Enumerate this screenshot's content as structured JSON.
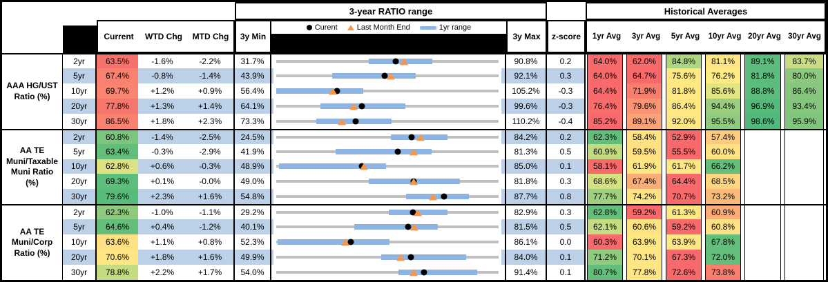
{
  "header": {
    "range_title": "3-year RATIO range",
    "hist_title": "Historical Averages",
    "legend": {
      "current": "Curent",
      "last_month": "Last Month End",
      "range": "1yr range"
    },
    "cols": {
      "current": "Current",
      "wtd": "WTD Chg",
      "mtd": "MTD Chg",
      "min": "3y Min",
      "max": "3y Max",
      "z": "z-score"
    },
    "avg_cols": [
      "1yr Avg",
      "3yr Avg",
      "5yr Avg",
      "10yr Avg",
      "20yr Avg",
      "30yr Avg"
    ]
  },
  "colors": {
    "stripe": "#BCD1E8",
    "track": "#BFBFBF",
    "bar_1yr": "#8DB4E2",
    "dot": "#000000",
    "triangle": "#F79646",
    "scale_red": "#F8696B",
    "scale_yellow": "#FFEB84",
    "scale_green": "#63BE7B"
  },
  "groups": [
    {
      "label": "AAA HG/UST\nRatio (%)",
      "rows": [
        {
          "tenor": "2yr",
          "current": "63.5%",
          "current_bg": "#F4716C",
          "wtd": "-1.6%",
          "mtd": "-2.2%",
          "min": "31.7%",
          "max": "90.8%",
          "z": "0.2",
          "min_v": 31.7,
          "max_v": 90.8,
          "cur_v": 63.5,
          "lme_v": 65.7,
          "bar": [
            56.2,
            73.2
          ],
          "avgs": [
            {
              "v": "64.0%",
              "bg": "#F8696B"
            },
            {
              "v": "62.0%",
              "bg": "#F8696B"
            },
            {
              "v": "84.8%",
              "bg": "#AFD47F"
            },
            {
              "v": "81.1%",
              "bg": "#FFE583"
            },
            {
              "v": "89.1%",
              "bg": "#5BBC7D"
            },
            {
              "v": "83.7%",
              "bg": "#C9DC84"
            }
          ]
        },
        {
          "tenor": "5yr",
          "current": "67.4%",
          "current_bg": "#F9816F",
          "wtd": "-0.8%",
          "mtd": "-1.4%",
          "min": "43.9%",
          "max": "92.1%",
          "z": "0.3",
          "min_v": 43.9,
          "max_v": 92.1,
          "cur_v": 67.4,
          "lme_v": 68.8,
          "bar": [
            56.0,
            74.2
          ],
          "avgs": [
            {
              "v": "64.0%",
              "bg": "#F8696B"
            },
            {
              "v": "64.7%",
              "bg": "#F8696B"
            },
            {
              "v": "75.6%",
              "bg": "#FFE984"
            },
            {
              "v": "76.2%",
              "bg": "#FFEB84"
            },
            {
              "v": "81.8%",
              "bg": "#5BBC7D"
            },
            {
              "v": "80.0%",
              "bg": "#8CC97E"
            }
          ]
        },
        {
          "tenor": "10yr",
          "current": "69.7%",
          "current_bg": "#F9846F",
          "wtd": "+1.2%",
          "mtd": "+0.9%",
          "min": "56.4%",
          "max": "105.2%",
          "z": "-0.3",
          "min_v": 56.4,
          "max_v": 105.2,
          "cur_v": 69.7,
          "lme_v": 68.8,
          "bar": [
            56.4,
            75.5
          ],
          "avgs": [
            {
              "v": "64.4%",
              "bg": "#F8696B"
            },
            {
              "v": "71.9%",
              "bg": "#F87E6D"
            },
            {
              "v": "81.8%",
              "bg": "#FFE884"
            },
            {
              "v": "85.6%",
              "bg": "#E3E583"
            },
            {
              "v": "88.8%",
              "bg": "#5BBC7D"
            },
            {
              "v": "86.4%",
              "bg": "#86C77D"
            }
          ]
        },
        {
          "tenor": "20yr",
          "current": "77.8%",
          "current_bg": "#F5766C",
          "wtd": "+1.3%",
          "mtd": "+1.4%",
          "min": "64.1%",
          "max": "99.6%",
          "z": "-0.3",
          "min_v": 64.1,
          "max_v": 99.6,
          "cur_v": 77.8,
          "lme_v": 76.4,
          "bar": [
            71.2,
            84.7
          ],
          "avgs": [
            {
              "v": "76.4%",
              "bg": "#F86C6B"
            },
            {
              "v": "79.6%",
              "bg": "#FA9473"
            },
            {
              "v": "86.4%",
              "bg": "#FFE884"
            },
            {
              "v": "94.4%",
              "bg": "#9BCD7F"
            },
            {
              "v": "96.9%",
              "bg": "#54BA7C"
            },
            {
              "v": "93.4%",
              "bg": "#84C67D"
            }
          ]
        },
        {
          "tenor": "30yr",
          "current": "86.5%",
          "current_bg": "#F9816E",
          "wtd": "+1.8%",
          "mtd": "+2.3%",
          "min": "73.3%",
          "max": "110.2%",
          "z": "-0.4",
          "min_v": 73.3,
          "max_v": 110.2,
          "cur_v": 86.5,
          "lme_v": 84.2,
          "bar": [
            80.0,
            92.4
          ],
          "avgs": [
            {
              "v": "85.2%",
              "bg": "#F8696B"
            },
            {
              "v": "89.1%",
              "bg": "#FBA276"
            },
            {
              "v": "92.0%",
              "bg": "#FFE884"
            },
            {
              "v": "95.5%",
              "bg": "#90CA7E"
            },
            {
              "v": "98.6%",
              "bg": "#50B87C"
            },
            {
              "v": "95.9%",
              "bg": "#7FC57D"
            }
          ]
        }
      ]
    },
    {
      "label": "AA TE\nMuni/Taxable\nMuni Ratio\n(%)",
      "rows": [
        {
          "tenor": "2yr",
          "current": "60.8%",
          "current_bg": "#7CC57D",
          "wtd": "-1.4%",
          "mtd": "-2.5%",
          "min": "24.5%",
          "max": "84.2%",
          "z": "0.2",
          "min_v": 24.5,
          "max_v": 84.2,
          "cur_v": 60.8,
          "lme_v": 63.3,
          "bar": [
            55.2,
            70.5
          ],
          "avgs": [
            {
              "v": "62.3%",
              "bg": "#63BE7B"
            },
            {
              "v": "58.4%",
              "bg": "#FFE383"
            },
            {
              "v": "52.9%",
              "bg": "#F8696B"
            },
            {
              "v": "57.4%",
              "bg": "#FDCA7E"
            },
            {
              "v": "",
              "bg": ""
            },
            {
              "v": "",
              "bg": ""
            }
          ]
        },
        {
          "tenor": "5yr",
          "current": "63.4%",
          "current_bg": "#63BE7B",
          "wtd": "-0.3%",
          "mtd": "-2.9%",
          "min": "41.9%",
          "max": "81.3%",
          "z": "0.5",
          "min_v": 41.9,
          "max_v": 81.3,
          "cur_v": 63.4,
          "lme_v": 66.3,
          "bar": [
            52.4,
            69.4
          ],
          "avgs": [
            {
              "v": "60.9%",
              "bg": "#C3DA81"
            },
            {
              "v": "59.5%",
              "bg": "#FFE083"
            },
            {
              "v": "55.5%",
              "bg": "#F8696B"
            },
            {
              "v": "60.0%",
              "bg": "#FFE383"
            },
            {
              "v": "",
              "bg": ""
            },
            {
              "v": "",
              "bg": ""
            }
          ]
        },
        {
          "tenor": "10yr",
          "current": "62.8%",
          "current_bg": "#DCE283",
          "wtd": "+0.6%",
          "mtd": "-0.3%",
          "min": "48.9%",
          "max": "85.0%",
          "z": "0.1",
          "min_v": 48.9,
          "max_v": 85.0,
          "cur_v": 62.8,
          "lme_v": 63.1,
          "bar": [
            49.3,
            66.7
          ],
          "avgs": [
            {
              "v": "58.1%",
              "bg": "#F8696B"
            },
            {
              "v": "61.9%",
              "bg": "#FFE784"
            },
            {
              "v": "61.7%",
              "bg": "#FFE884"
            },
            {
              "v": "66.2%",
              "bg": "#63BE7B"
            },
            {
              "v": "",
              "bg": ""
            },
            {
              "v": "",
              "bg": ""
            }
          ]
        },
        {
          "tenor": "20yr",
          "current": "69.3%",
          "current_bg": "#5DBD7B",
          "wtd": "+0.1%",
          "mtd": "-0.0%",
          "min": "49.0%",
          "max": "81.8%",
          "z": "0.3",
          "min_v": 49.0,
          "max_v": 81.8,
          "cur_v": 69.3,
          "lme_v": 69.3,
          "bar": [
            62.7,
            76.1
          ],
          "avgs": [
            {
              "v": "68.6%",
              "bg": "#D5E081"
            },
            {
              "v": "67.4%",
              "bg": "#FBAD77"
            },
            {
              "v": "64.4%",
              "bg": "#F8696B"
            },
            {
              "v": "68.5%",
              "bg": "#FED57F"
            },
            {
              "v": "",
              "bg": ""
            },
            {
              "v": "",
              "bg": ""
            }
          ]
        },
        {
          "tenor": "30yr",
          "current": "79.6%",
          "current_bg": "#57BB7A",
          "wtd": "+2.3%",
          "mtd": "+1.6%",
          "min": "54.8%",
          "max": "87.7%",
          "z": "0.8",
          "min_v": 54.8,
          "max_v": 87.7,
          "cur_v": 79.6,
          "lme_v": 78.0,
          "bar": [
            74.0,
            83.3
          ],
          "avgs": [
            {
              "v": "77.7%",
              "bg": "#9FCF7F"
            },
            {
              "v": "74.2%",
              "bg": "#FFE384"
            },
            {
              "v": "70.7%",
              "bg": "#F8696B"
            },
            {
              "v": "73.2%",
              "bg": "#FCBA7A"
            },
            {
              "v": "",
              "bg": ""
            },
            {
              "v": "",
              "bg": ""
            }
          ]
        }
      ]
    },
    {
      "label": "AA TE\nMuni/Corp\nRatio (%)",
      "rows": [
        {
          "tenor": "2yr",
          "current": "62.3%",
          "current_bg": "#8FCA7E",
          "wtd": "-1.0%",
          "mtd": "-1.1%",
          "min": "29.2%",
          "max": "82.9%",
          "z": "0.3",
          "min_v": 29.2,
          "max_v": 82.9,
          "cur_v": 62.3,
          "lme_v": 63.4,
          "bar": [
            56.3,
            70.6
          ],
          "avgs": [
            {
              "v": "62.8%",
              "bg": "#63BE7B"
            },
            {
              "v": "59.2%",
              "bg": "#F8696B"
            },
            {
              "v": "61.3%",
              "bg": "#FFE784"
            },
            {
              "v": "60.9%",
              "bg": "#FBAC77"
            },
            {
              "v": "",
              "bg": ""
            },
            {
              "v": "",
              "bg": ""
            }
          ]
        },
        {
          "tenor": "5yr",
          "current": "64.6%",
          "current_bg": "#63BE7B",
          "wtd": "+0.4%",
          "mtd": "-1.2%",
          "min": "40.1%",
          "max": "81.5%",
          "z": "0.5",
          "min_v": 40.1,
          "max_v": 81.5,
          "cur_v": 64.6,
          "lme_v": 65.8,
          "bar": [
            54.6,
            70.2
          ],
          "avgs": [
            {
              "v": "62.1%",
              "bg": "#C6DC81"
            },
            {
              "v": "60.6%",
              "bg": "#FFE383"
            },
            {
              "v": "59.2%",
              "bg": "#F8696B"
            },
            {
              "v": "60.8%",
              "bg": "#FFE083"
            },
            {
              "v": "",
              "bg": ""
            },
            {
              "v": "",
              "bg": ""
            }
          ]
        },
        {
          "tenor": "10yr",
          "current": "63.6%",
          "current_bg": "#FFE083",
          "wtd": "+1.1%",
          "mtd": "+0.8%",
          "min": "52.3%",
          "max": "86.1%",
          "z": "0.0",
          "min_v": 52.3,
          "max_v": 86.1,
          "cur_v": 63.6,
          "lme_v": 62.8,
          "bar": [
            52.5,
            69.5
          ],
          "avgs": [
            {
              "v": "60.3%",
              "bg": "#F8696B"
            },
            {
              "v": "63.9%",
              "bg": "#FFE884"
            },
            {
              "v": "63.9%",
              "bg": "#FFE884"
            },
            {
              "v": "67.8%",
              "bg": "#63BE7B"
            },
            {
              "v": "",
              "bg": ""
            },
            {
              "v": "",
              "bg": ""
            }
          ]
        },
        {
          "tenor": "20yr",
          "current": "70.6%",
          "current_bg": "#FFE584",
          "wtd": "+1.8%",
          "mtd": "+1.6%",
          "min": "49.9%",
          "max": "84.0%",
          "z": "0.1",
          "min_v": 49.9,
          "max_v": 84.0,
          "cur_v": 70.6,
          "lme_v": 69.0,
          "bar": [
            66.0,
            79.0
          ],
          "avgs": [
            {
              "v": "71.2%",
              "bg": "#8FCA7E"
            },
            {
              "v": "70.1%",
              "bg": "#FFE584"
            },
            {
              "v": "67.3%",
              "bg": "#F8696B"
            },
            {
              "v": "72.0%",
              "bg": "#63BE7B"
            },
            {
              "v": "",
              "bg": ""
            },
            {
              "v": "",
              "bg": ""
            }
          ]
        },
        {
          "tenor": "30yr",
          "current": "78.8%",
          "current_bg": "#C5DB81",
          "wtd": "+2.2%",
          "mtd": "+1.7%",
          "min": "54.0%",
          "max": "91.4%",
          "z": "0.1",
          "min_v": 54.0,
          "max_v": 91.4,
          "cur_v": 78.8,
          "lme_v": 77.1,
          "bar": [
            74.6,
            87.8
          ],
          "avgs": [
            {
              "v": "80.7%",
              "bg": "#63BE7B"
            },
            {
              "v": "77.8%",
              "bg": "#FFE584"
            },
            {
              "v": "72.6%",
              "bg": "#F8696B"
            },
            {
              "v": "73.8%",
              "bg": "#F97E6D"
            },
            {
              "v": "",
              "bg": ""
            },
            {
              "v": "",
              "bg": ""
            }
          ]
        }
      ]
    }
  ],
  "chart_data": {
    "type": "scatter",
    "title": "3-year RATIO range",
    "legend": [
      "Curent",
      "Last Month End",
      "1yr range"
    ],
    "note": "Per row dot-plot: gray line spans 3y Min to 3y Max, blue bar = 1yr range, black dot = Current, orange triangle = Last Month End",
    "rows": [
      {
        "group": "AAA HG/UST Ratio (%)",
        "tenor": "2yr",
        "range_3y": [
          31.7,
          90.8
        ],
        "range_1yr": [
          56.2,
          73.2
        ],
        "current": 63.5,
        "last_month_end": 65.7
      },
      {
        "group": "AAA HG/UST Ratio (%)",
        "tenor": "5yr",
        "range_3y": [
          43.9,
          92.1
        ],
        "range_1yr": [
          56.0,
          74.2
        ],
        "current": 67.4,
        "last_month_end": 68.8
      },
      {
        "group": "AAA HG/UST Ratio (%)",
        "tenor": "10yr",
        "range_3y": [
          56.4,
          105.2
        ],
        "range_1yr": [
          56.4,
          75.5
        ],
        "current": 69.7,
        "last_month_end": 68.8
      },
      {
        "group": "AAA HG/UST Ratio (%)",
        "tenor": "20yr",
        "range_3y": [
          64.1,
          99.6
        ],
        "range_1yr": [
          71.2,
          84.7
        ],
        "current": 77.8,
        "last_month_end": 76.4
      },
      {
        "group": "AAA HG/UST Ratio (%)",
        "tenor": "30yr",
        "range_3y": [
          73.3,
          110.2
        ],
        "range_1yr": [
          80.0,
          92.4
        ],
        "current": 86.5,
        "last_month_end": 84.2
      },
      {
        "group": "AA TE Muni/Taxable Muni Ratio (%)",
        "tenor": "2yr",
        "range_3y": [
          24.5,
          84.2
        ],
        "range_1yr": [
          55.2,
          70.5
        ],
        "current": 60.8,
        "last_month_end": 63.3
      },
      {
        "group": "AA TE Muni/Taxable Muni Ratio (%)",
        "tenor": "5yr",
        "range_3y": [
          41.9,
          81.3
        ],
        "range_1yr": [
          52.4,
          69.4
        ],
        "current": 63.4,
        "last_month_end": 66.3
      },
      {
        "group": "AA TE Muni/Taxable Muni Ratio (%)",
        "tenor": "10yr",
        "range_3y": [
          48.9,
          85.0
        ],
        "range_1yr": [
          49.3,
          66.7
        ],
        "current": 62.8,
        "last_month_end": 63.1
      },
      {
        "group": "AA TE Muni/Taxable Muni Ratio (%)",
        "tenor": "20yr",
        "range_3y": [
          49.0,
          81.8
        ],
        "range_1yr": [
          62.7,
          76.1
        ],
        "current": 69.3,
        "last_month_end": 69.3
      },
      {
        "group": "AA TE Muni/Taxable Muni Ratio (%)",
        "tenor": "30yr",
        "range_3y": [
          54.8,
          87.7
        ],
        "range_1yr": [
          74.0,
          83.3
        ],
        "current": 79.6,
        "last_month_end": 78.0
      },
      {
        "group": "AA TE Muni/Corp Ratio (%)",
        "tenor": "2yr",
        "range_3y": [
          29.2,
          82.9
        ],
        "range_1yr": [
          56.3,
          70.6
        ],
        "current": 62.3,
        "last_month_end": 63.4
      },
      {
        "group": "AA TE Muni/Corp Ratio (%)",
        "tenor": "5yr",
        "range_3y": [
          40.1,
          81.5
        ],
        "range_1yr": [
          54.6,
          70.2
        ],
        "current": 64.6,
        "last_month_end": 65.8
      },
      {
        "group": "AA TE Muni/Corp Ratio (%)",
        "tenor": "10yr",
        "range_3y": [
          52.3,
          86.1
        ],
        "range_1yr": [
          52.5,
          69.5
        ],
        "current": 63.6,
        "last_month_end": 62.8
      },
      {
        "group": "AA TE Muni/Corp Ratio (%)",
        "tenor": "20yr",
        "range_3y": [
          49.9,
          84.0
        ],
        "range_1yr": [
          66.0,
          79.0
        ],
        "current": 70.6,
        "last_month_end": 69.0
      },
      {
        "group": "AA TE Muni/Corp Ratio (%)",
        "tenor": "30yr",
        "range_3y": [
          54.0,
          91.4
        ],
        "range_1yr": [
          74.6,
          87.8
        ],
        "current": 78.8,
        "last_month_end": 77.1
      }
    ]
  }
}
